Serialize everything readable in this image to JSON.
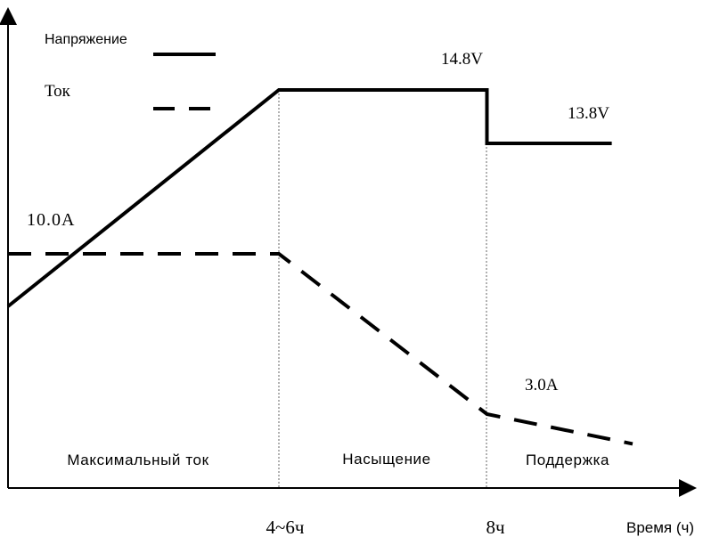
{
  "chart_data": {
    "type": "line",
    "x_axis_label": "Время (ч)",
    "x_ticks": [
      "4~6ч",
      "8ч"
    ],
    "legend": {
      "voltage": "Напряжение",
      "current": "Ток"
    },
    "phases": [
      "Максимальный ток",
      "Насыщение",
      "Поддержка"
    ],
    "series": [
      {
        "name": "Напряжение",
        "style": "solid",
        "points": [
          {
            "phase_pos": 0.0,
            "level": "low"
          },
          {
            "phase_pos": 1.0,
            "value": 14.8
          },
          {
            "phase_pos": 2.0,
            "value": 14.8
          },
          {
            "phase_pos": 2.0,
            "value": 13.8
          },
          {
            "phase_pos": 2.6,
            "value": 13.8
          }
        ],
        "labels": [
          "14.8V",
          "13.8V"
        ]
      },
      {
        "name": "Ток",
        "style": "dashed",
        "points": [
          {
            "phase_pos": 0.0,
            "value": 10.0
          },
          {
            "phase_pos": 1.0,
            "value": 10.0
          },
          {
            "phase_pos": 2.0,
            "value": 3.0
          },
          {
            "phase_pos": 2.7,
            "value": 1.7
          }
        ],
        "labels": [
          "10.0A",
          "3.0A"
        ]
      }
    ],
    "colors": {
      "line": "#000000",
      "guide": "#555555"
    }
  }
}
